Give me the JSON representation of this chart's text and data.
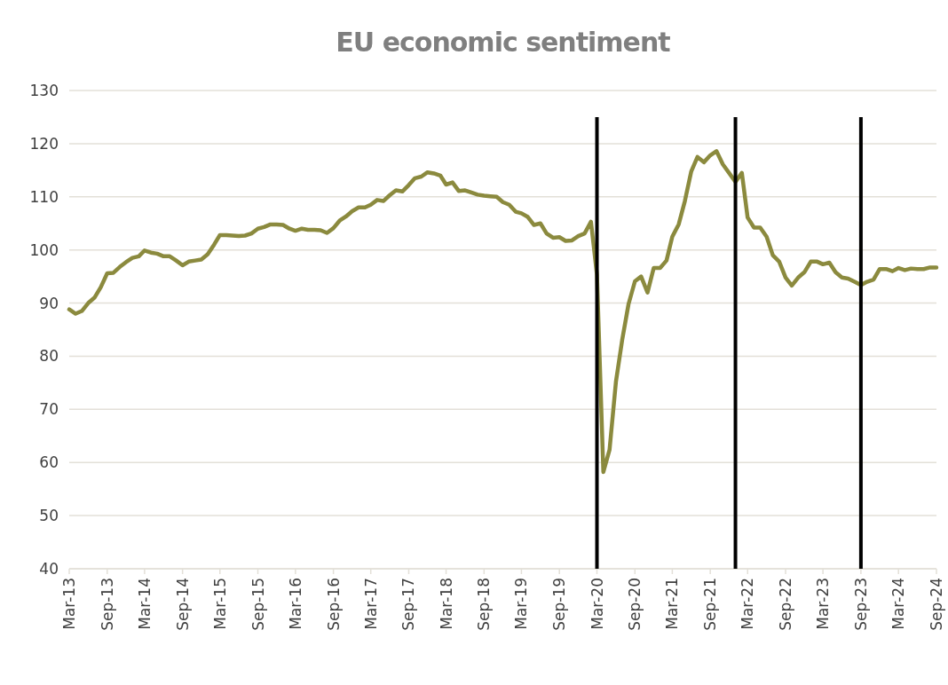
{
  "chart_data": {
    "type": "line",
    "title": "EU economic sentiment",
    "x": [
      "2013-03",
      "2013-04",
      "2013-05",
      "2013-06",
      "2013-07",
      "2013-08",
      "2013-09",
      "2013-10",
      "2013-11",
      "2013-12",
      "2014-01",
      "2014-02",
      "2014-03",
      "2014-04",
      "2014-05",
      "2014-06",
      "2014-07",
      "2014-08",
      "2014-09",
      "2014-10",
      "2014-11",
      "2014-12",
      "2015-01",
      "2015-02",
      "2015-03",
      "2015-04",
      "2015-05",
      "2015-06",
      "2015-07",
      "2015-08",
      "2015-09",
      "2015-10",
      "2015-11",
      "2015-12",
      "2016-01",
      "2016-02",
      "2016-03",
      "2016-04",
      "2016-05",
      "2016-06",
      "2016-07",
      "2016-08",
      "2016-09",
      "2016-10",
      "2016-11",
      "2016-12",
      "2017-01",
      "2017-02",
      "2017-03",
      "2017-04",
      "2017-05",
      "2017-06",
      "2017-07",
      "2017-08",
      "2017-09",
      "2017-10",
      "2017-11",
      "2017-12",
      "2018-01",
      "2018-02",
      "2018-03",
      "2018-04",
      "2018-05",
      "2018-06",
      "2018-07",
      "2018-08",
      "2018-09",
      "2018-10",
      "2018-11",
      "2018-12",
      "2019-01",
      "2019-02",
      "2019-03",
      "2019-04",
      "2019-05",
      "2019-06",
      "2019-07",
      "2019-08",
      "2019-09",
      "2019-10",
      "2019-11",
      "2019-12",
      "2020-01",
      "2020-02",
      "2020-03",
      "2020-04",
      "2020-05",
      "2020-06",
      "2020-07",
      "2020-08",
      "2020-09",
      "2020-10",
      "2020-11",
      "2020-12",
      "2021-01",
      "2021-02",
      "2021-03",
      "2021-04",
      "2021-05",
      "2021-06",
      "2021-07",
      "2021-08",
      "2021-09",
      "2021-10",
      "2021-11",
      "2021-12",
      "2022-01",
      "2022-02",
      "2022-03",
      "2022-04",
      "2022-05",
      "2022-06",
      "2022-07",
      "2022-08",
      "2022-09",
      "2022-10",
      "2022-11",
      "2022-12",
      "2023-01",
      "2023-02",
      "2023-03",
      "2023-04",
      "2023-05",
      "2023-06",
      "2023-07",
      "2023-08",
      "2023-09",
      "2023-10",
      "2023-11",
      "2023-12",
      "2024-01",
      "2024-02",
      "2024-03",
      "2024-04",
      "2024-05",
      "2024-06",
      "2024-07",
      "2024-08",
      "2024-09"
    ],
    "series": [
      {
        "color": "#8b8a3e",
        "values": [
          88.8,
          88,
          88.5,
          90,
          91,
          93,
          95.6,
          95.7,
          96.8,
          97.7,
          98.5,
          98.8,
          99.9,
          99.5,
          99.3,
          98.8,
          98.8,
          98,
          97.1,
          97.8,
          98,
          98.2,
          99.2,
          101,
          102.8,
          102.8,
          102.7,
          102.6,
          102.7,
          103.1,
          104,
          104.3,
          104.8,
          104.8,
          104.7,
          104,
          103.6,
          104,
          103.8,
          103.8,
          103.7,
          103.2,
          104.1,
          105.5,
          106.3,
          107.3,
          108,
          108,
          108.5,
          109.4,
          109.2,
          110.3,
          111.2,
          111,
          112.2,
          113.5,
          113.8,
          114.6,
          114.4,
          114,
          112.3,
          112.7,
          111.1,
          111.2,
          110.8,
          110.4,
          110.2,
          110.1,
          110,
          109,
          108.5,
          107.2,
          106.9,
          106.2,
          104.7,
          105,
          103.1,
          102.3,
          102.4,
          101.7,
          101.8,
          102.6,
          103.1,
          105.3,
          95.3,
          58.2,
          62.4,
          75.2,
          83,
          89.8,
          94.1,
          95,
          92,
          96.6,
          96.6,
          98,
          102.5,
          104.8,
          109.2,
          114.8,
          117.5,
          116.5,
          117.8,
          118.6,
          116.1,
          114.5,
          112.8,
          114.5,
          106.1,
          104.2,
          104.2,
          102.5,
          99,
          97.8,
          94.8,
          93.3,
          94.8,
          95.8,
          97.8,
          97.8,
          97.3,
          97.6,
          95.8,
          94.8,
          94.6,
          94,
          93.4,
          94,
          94.4,
          96.4,
          96.4,
          96,
          96.6,
          96.2,
          96.5,
          96.4,
          96.4,
          96.7,
          96.7
        ]
      }
    ],
    "xlim": [
      "2013-03",
      "2024-09"
    ],
    "xticks": [
      {
        "value": "2013-03",
        "label": "Mar-13"
      },
      {
        "value": "2013-09",
        "label": "Sep-13"
      },
      {
        "value": "2014-03",
        "label": "Mar-14"
      },
      {
        "value": "2014-09",
        "label": "Sep-14"
      },
      {
        "value": "2015-03",
        "label": "Mar-15"
      },
      {
        "value": "2015-09",
        "label": "Sep-15"
      },
      {
        "value": "2016-03",
        "label": "Mar-16"
      },
      {
        "value": "2016-09",
        "label": "Sep-16"
      },
      {
        "value": "2017-03",
        "label": "Mar-17"
      },
      {
        "value": "2017-09",
        "label": "Sep-17"
      },
      {
        "value": "2018-03",
        "label": "Mar-18"
      },
      {
        "value": "2018-09",
        "label": "Sep-18"
      },
      {
        "value": "2019-03",
        "label": "Mar-19"
      },
      {
        "value": "2019-09",
        "label": "Sep-19"
      },
      {
        "value": "2020-03",
        "label": "Mar-20"
      },
      {
        "value": "2020-09",
        "label": "Sep-20"
      },
      {
        "value": "2021-03",
        "label": "Mar-21"
      },
      {
        "value": "2021-09",
        "label": "Sep-21"
      },
      {
        "value": "2022-03",
        "label": "Mar-22"
      },
      {
        "value": "2022-09",
        "label": "Sep-22"
      },
      {
        "value": "2023-03",
        "label": "Mar-23"
      },
      {
        "value": "2023-09",
        "label": "Sep-23"
      },
      {
        "value": "2024-03",
        "label": "Mar-24"
      },
      {
        "value": "2024-09",
        "label": "Sep-24"
      }
    ],
    "ylim": [
      40,
      130
    ],
    "yticks": [
      40,
      50,
      60,
      70,
      80,
      90,
      100,
      110,
      120,
      130
    ],
    "grid": "y",
    "ref_lines": [
      {
        "axis": "x",
        "value": "2020-03",
        "color": "#000000"
      },
      {
        "axis": "x",
        "value": "2022-01",
        "color": "#000000"
      },
      {
        "axis": "x",
        "value": "2023-09",
        "color": "#000000"
      }
    ]
  }
}
